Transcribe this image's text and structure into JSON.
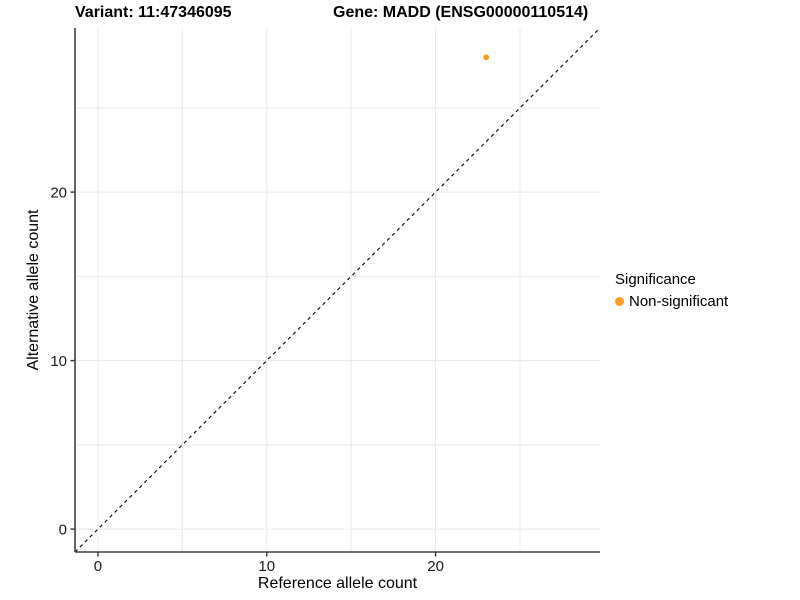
{
  "figure": {
    "title_left": "Variant: 11:47346095",
    "title_right": "Gene: MADD (ENSG00000110514)"
  },
  "legend": {
    "title": "Significance",
    "items": [
      {
        "label": "Non-significant",
        "color": "#F99D1C",
        "marker": "circle"
      }
    ]
  },
  "chart_data": {
    "type": "scatter",
    "title": "Variant: 11:47346095    Gene: MADD (ENSG00000110514)",
    "xlabel": "Reference allele count",
    "ylabel": "Alternative allele count",
    "xlim": [
      -1.36,
      29.74
    ],
    "ylim": [
      -1.36,
      29.74
    ],
    "x_ticks": [
      0,
      10,
      20
    ],
    "y_ticks": [
      0,
      10,
      20
    ],
    "gridlines_x": [
      0,
      5,
      10,
      15,
      20,
      25
    ],
    "gridlines_y": [
      0,
      5,
      10,
      15,
      20,
      25
    ],
    "grid": true,
    "legend_position": "right",
    "identity_line": {
      "style": "dashed",
      "color": "#000000"
    },
    "series": [
      {
        "name": "Non-significant",
        "color": "#F99D1C",
        "points": [
          {
            "x": 23,
            "y": 28
          }
        ]
      }
    ],
    "colors": {
      "axis_line": "#404040",
      "grid_line": "#E8E8E8",
      "tick_mark": "#333333",
      "tick_label": "#1A1A1A"
    }
  }
}
